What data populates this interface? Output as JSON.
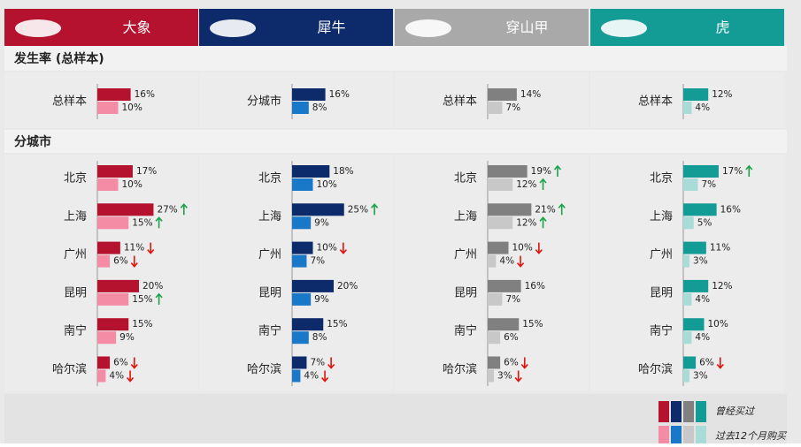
{
  "section_titles": [
    "发生率 (总样本)",
    "分城市"
  ],
  "legend": {
    "labels": [
      "曾经买过",
      "过去12个月购买"
    ]
  },
  "chart_data": [
    {
      "type": "bar",
      "title": "大象",
      "header_color": "#b5122f",
      "categories": [
        "总样本",
        "北京",
        "上海",
        "广州",
        "昆明",
        "南宁",
        "哈尔滨"
      ],
      "series": [
        {
          "color": "#b5122f",
          "values": [
            16,
            17,
            27,
            11,
            20,
            15,
            6
          ],
          "value_labels": [
            "16%",
            "17%",
            "27%",
            "11%",
            "20%",
            "15%",
            "6%"
          ],
          "arrows": [
            null,
            null,
            "up",
            "down",
            null,
            null,
            "down"
          ]
        },
        {
          "color": "#f48ca6",
          "values": [
            10,
            10,
            15,
            6,
            15,
            9,
            4
          ],
          "value_labels": [
            "10%",
            "10%",
            "15%",
            "6%",
            "15%",
            "9%",
            "4%"
          ],
          "arrows": [
            null,
            null,
            "up",
            "down",
            "up",
            null,
            "down"
          ]
        }
      ]
    },
    {
      "type": "bar",
      "title": "犀牛",
      "header_color": "#0d2a6b",
      "categories": [
        "分城市",
        "北京",
        "上海",
        "广州",
        "昆明",
        "南宁",
        "哈尔滨"
      ],
      "series": [
        {
          "color": "#0d2a6b",
          "values": [
            16,
            18,
            25,
            10,
            20,
            15,
            7
          ],
          "value_labels": [
            "16%",
            "18%",
            "25%",
            "10%",
            "20%",
            "15%",
            "7%"
          ],
          "arrows": [
            null,
            null,
            "up",
            "down",
            null,
            null,
            "down"
          ]
        },
        {
          "color": "#1a78c8",
          "values": [
            8,
            10,
            9,
            7,
            9,
            8,
            4
          ],
          "value_labels": [
            "8%",
            "10%",
            "9%",
            "7%",
            "9%",
            "8%",
            "4%"
          ],
          "arrows": [
            null,
            null,
            null,
            null,
            null,
            null,
            "down"
          ]
        }
      ]
    },
    {
      "type": "bar",
      "title": "穿山甲",
      "header_color": "#a9a9a9",
      "categories": [
        "总样本",
        "北京",
        "上海",
        "广州",
        "昆明",
        "南宁",
        "哈尔滨"
      ],
      "series": [
        {
          "color": "#808080",
          "values": [
            14,
            19,
            21,
            10,
            16,
            15,
            6
          ],
          "value_labels": [
            "14%",
            "19%",
            "21%",
            "10%",
            "16%",
            "15%",
            "6%"
          ],
          "arrows": [
            null,
            "up",
            "up",
            "down",
            null,
            null,
            "down"
          ]
        },
        {
          "color": "#c8c8c8",
          "values": [
            7,
            12,
            12,
            4,
            7,
            6,
            3
          ],
          "value_labels": [
            "7%",
            "12%",
            "12%",
            "4%",
            "7%",
            "6%",
            "3%"
          ],
          "arrows": [
            null,
            "up",
            "up",
            "down",
            null,
            null,
            "down"
          ]
        }
      ]
    },
    {
      "type": "bar",
      "title": "虎",
      "header_color": "#139b95",
      "categories": [
        "总样本",
        "北京",
        "上海",
        "广州",
        "昆明",
        "南宁",
        "哈尔滨"
      ],
      "series": [
        {
          "color": "#139b95",
          "values": [
            12,
            17,
            16,
            11,
            12,
            10,
            6
          ],
          "value_labels": [
            "12%",
            "17%",
            "16%",
            "11%",
            "12%",
            "10%",
            "6%"
          ],
          "arrows": [
            null,
            "up",
            null,
            null,
            null,
            null,
            "down"
          ]
        },
        {
          "color": "#a9dcd7",
          "values": [
            4,
            7,
            5,
            3,
            4,
            4,
            3
          ],
          "value_labels": [
            "4%",
            "7%",
            "5%",
            "3%",
            "4%",
            "4%",
            "3%"
          ],
          "arrows": [
            null,
            null,
            null,
            null,
            null,
            null,
            null
          ]
        }
      ]
    }
  ]
}
